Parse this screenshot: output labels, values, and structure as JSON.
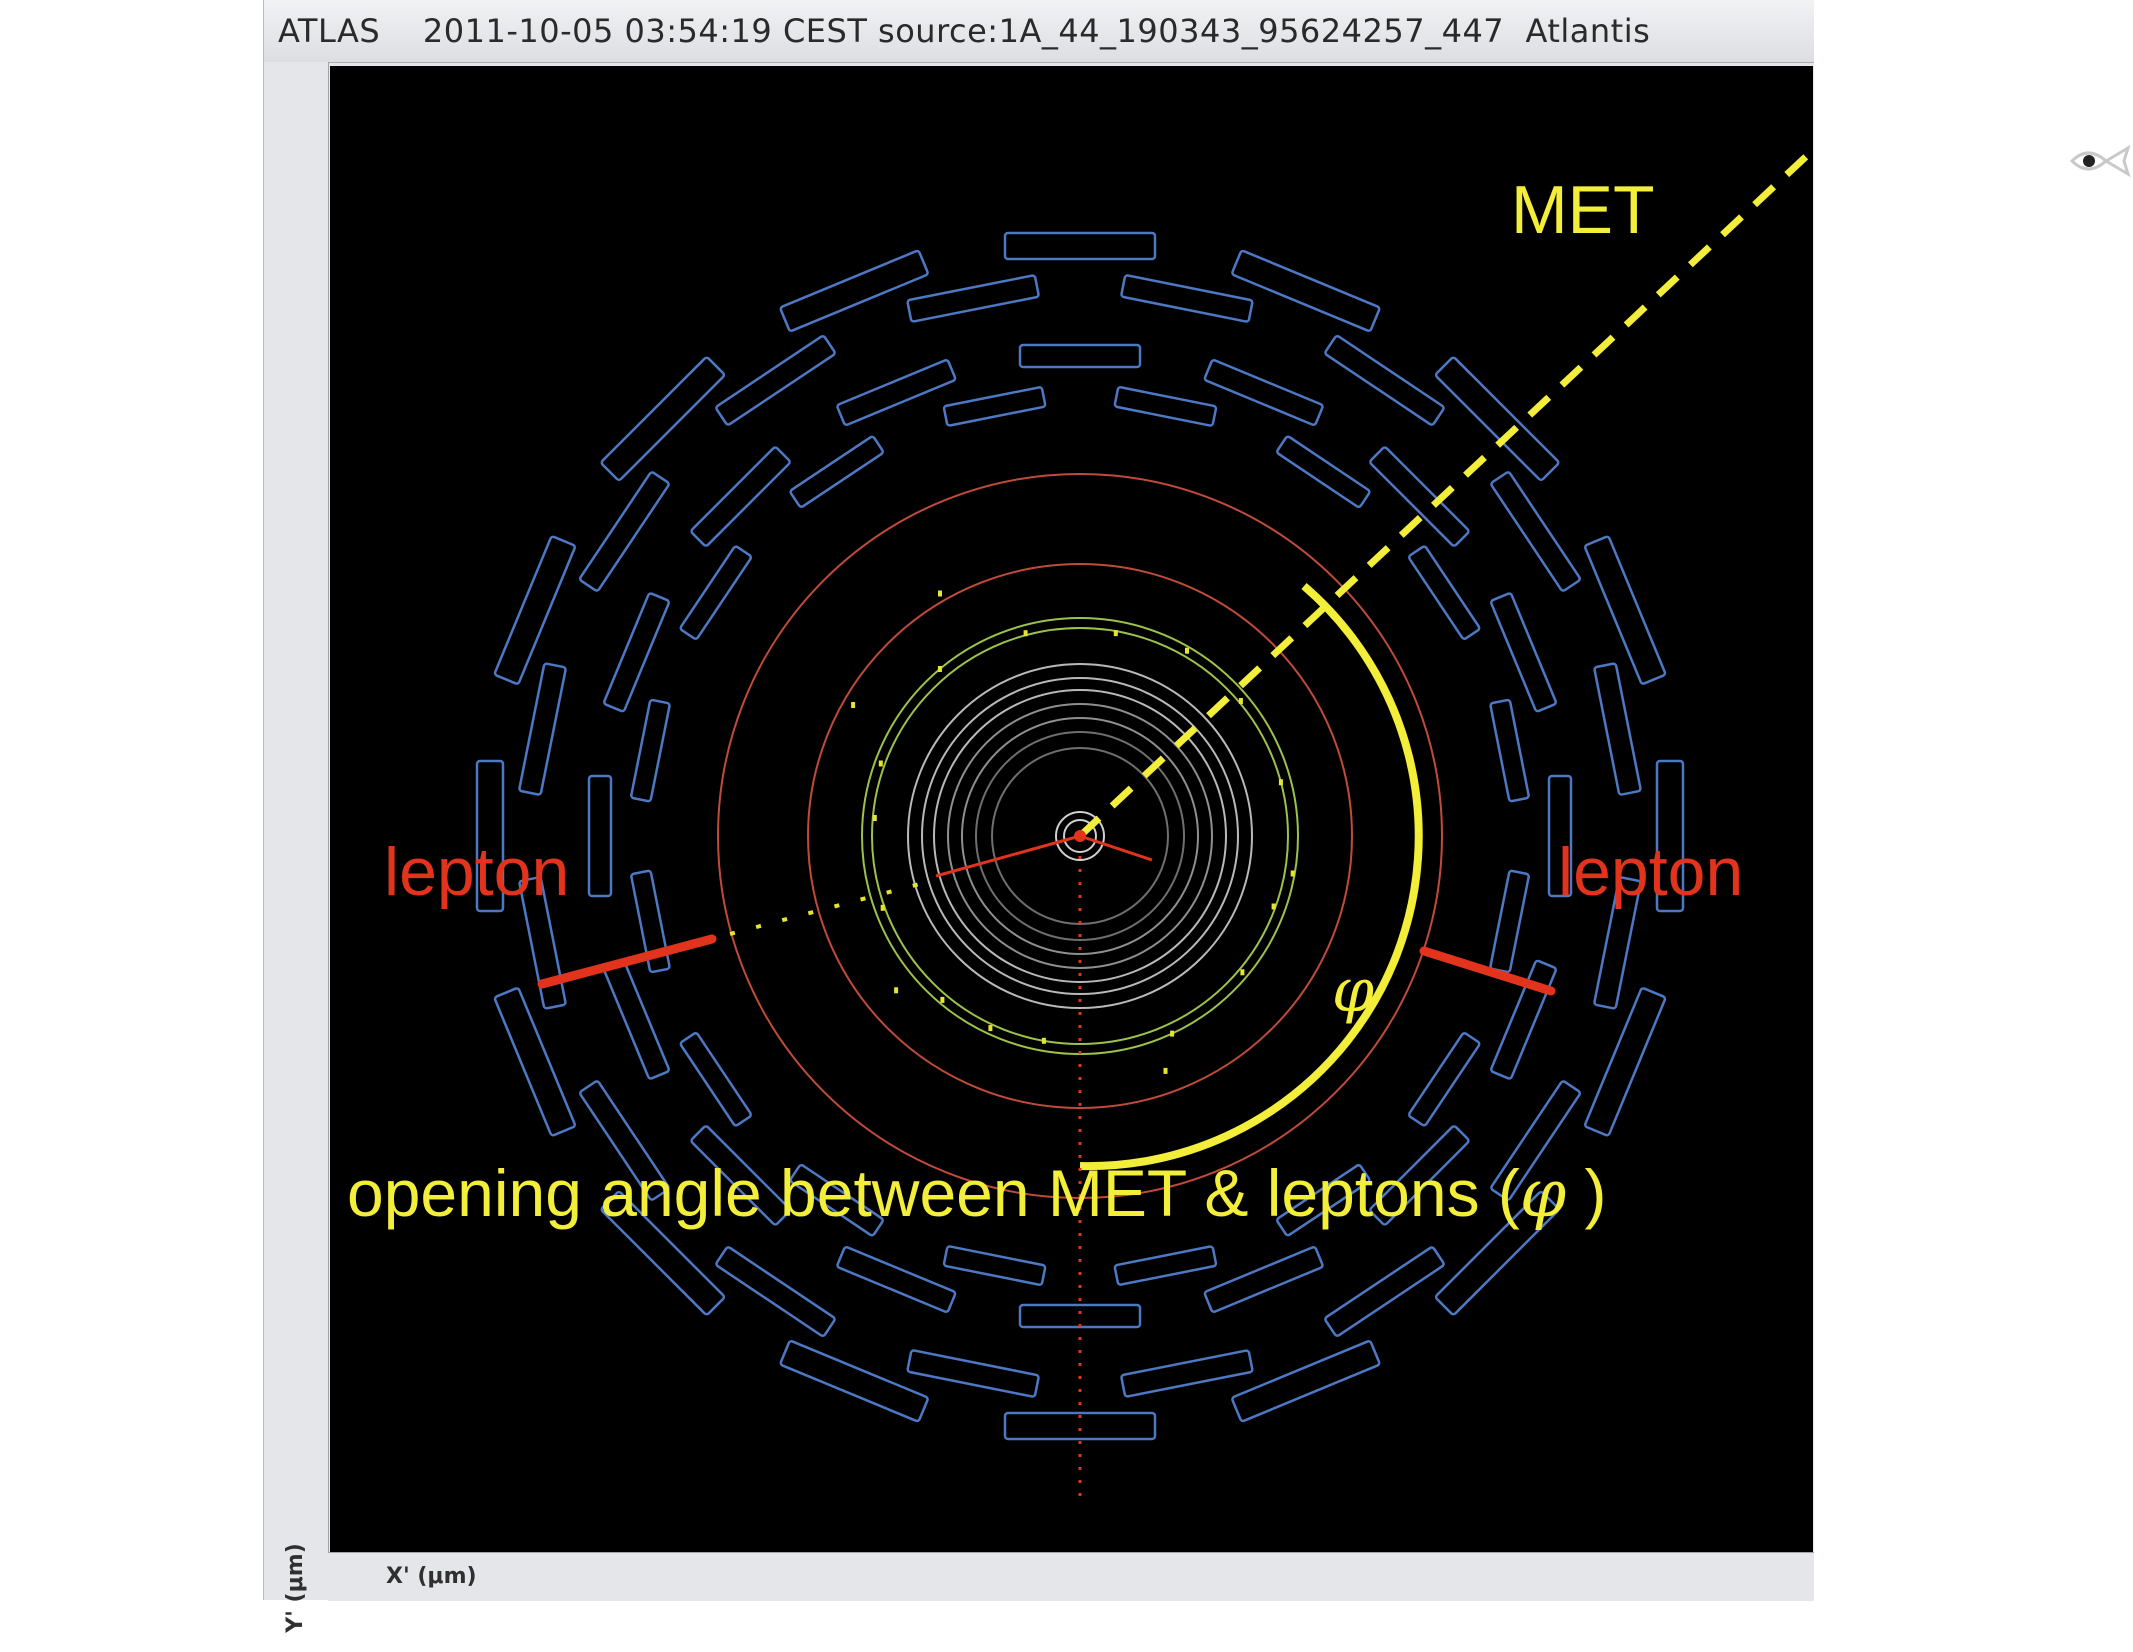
{
  "window": {
    "title": "ATLAS    2011-10-05 03:54:19 CEST source:1A_44_190343_95624257_447  Atlantis"
  },
  "axes": {
    "y_label": "Y' (μm)",
    "x_label": "X' (μm)"
  },
  "annotations": {
    "met": "MET",
    "lepton_left": "lepton",
    "lepton_right": "lepton",
    "phi": "φ",
    "caption_main": "opening angle between MET & leptons (",
    "caption_symbol": "φ",
    "caption_end": " )"
  },
  "toolbar": {
    "icon": "eye-fish-icon"
  },
  "colors": {
    "background": "#000000",
    "muon_chambers": "#4d79c4",
    "calorimeter": "#c04b3a",
    "tracker_green": "#9cc24a",
    "tracker_grey": "#b9b9b9",
    "met": "#f2ee3a",
    "lepton": "#e2331c"
  }
}
